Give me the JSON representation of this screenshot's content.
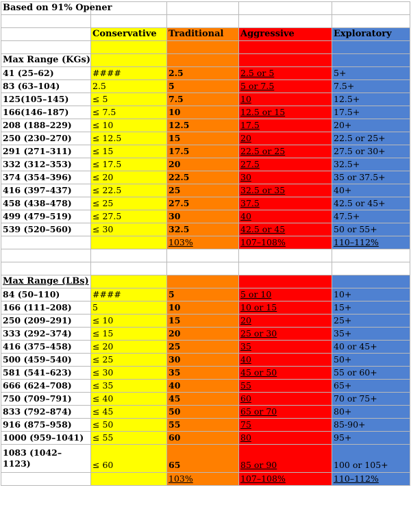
{
  "title": "Based on 91% Opener",
  "headers": {
    "conservative": "Conservative",
    "traditional": "Traditional",
    "aggressive": "Aggressive",
    "exploratory": "Exploratory"
  },
  "kg": {
    "label": "Max Range (KGs)",
    "rows": [
      {
        "range": "41 (25–62)",
        "conservative": "####",
        "traditional": "2.5",
        "aggressive": "2.5 or 5",
        "exploratory": "5+"
      },
      {
        "range": "83 (63–104)",
        "conservative": "2.5",
        "traditional": "5",
        "aggressive": "5 or 7.5",
        "exploratory": "7.5+"
      },
      {
        "range": "125(105–145)",
        "conservative": "≤ 5",
        "traditional": "7.5",
        "aggressive": "10",
        "exploratory": "12.5+"
      },
      {
        "range": "166(146–187)",
        "conservative": "≤ 7.5",
        "traditional": "10",
        "aggressive": "12.5 or 15",
        "exploratory": "17.5+"
      },
      {
        "range": "208 (188–229)",
        "conservative": "≤ 10",
        "traditional": "12.5",
        "aggressive": "17.5",
        "exploratory": "20+"
      },
      {
        "range": "250 (230–270)",
        "conservative": "≤ 12.5",
        "traditional": "15",
        "aggressive": "20",
        "exploratory": "22.5 or 25+"
      },
      {
        "range": "291 (271–311)",
        "conservative": "≤ 15",
        "traditional": "17.5",
        "aggressive": "22.5 or 25",
        "exploratory": "27.5 or 30+"
      },
      {
        "range": "332 (312–353)",
        "conservative": "≤ 17.5",
        "traditional": "20",
        "aggressive": "27.5",
        "exploratory": "32.5+"
      },
      {
        "range": "374 (354–396)",
        "conservative": "≤ 20",
        "traditional": "22.5",
        "aggressive": "30",
        "exploratory": "35 or 37.5+"
      },
      {
        "range": "416 (397–437)",
        "conservative": "≤ 22.5",
        "traditional": "25",
        "aggressive": "32.5 or 35",
        "exploratory": " 40+"
      },
      {
        "range": "458 (438–478)",
        "conservative": "≤ 25",
        "traditional": "27.5",
        "aggressive": "37.5",
        "exploratory": "42.5 or 45+"
      },
      {
        "range": "499 (479–519)",
        "conservative": "≤ 27.5",
        "traditional": "30",
        "aggressive": "40",
        "exploratory": "47.5+"
      },
      {
        "range": "539 (520–560)",
        "conservative": "≤ 30",
        "traditional": "32.5",
        "aggressive": "42.5 or 45",
        "exploratory": "50 or 55+"
      }
    ],
    "percent": {
      "traditional": "103%",
      "aggressive": "107–108%",
      "exploratory": "110–112%"
    }
  },
  "lb": {
    "label": "Max Range (LBs)",
    "rows": [
      {
        "range": "84 (50–110)",
        "conservative": "####",
        "traditional": "5",
        "aggressive": "5 or 10",
        "exploratory": "10+"
      },
      {
        "range": "166 (111–208)",
        "conservative": "5",
        "traditional": "10",
        "aggressive": "10 or 15",
        "exploratory": "15+"
      },
      {
        "range": "250 (209–291)",
        "conservative": "≤ 10",
        "traditional": "15",
        "aggressive": "20",
        "exploratory": "25+"
      },
      {
        "range": "333 (292–374)",
        "conservative": "≤ 15",
        "traditional": "20",
        "aggressive": "25 or 30",
        "exploratory": "35+"
      },
      {
        "range": "416 (375–458)",
        "conservative": "≤ 20",
        "traditional": "25",
        "aggressive": "35",
        "exploratory": "40 or 45+"
      },
      {
        "range": "500 (459–540)",
        "conservative": "≤ 25",
        "traditional": "30",
        "aggressive": "40",
        "exploratory": "50+"
      },
      {
        "range": "581 (541–623)",
        "conservative": "≤ 30",
        "traditional": "35",
        "aggressive": "45 or 50",
        "exploratory": "55 or 60+"
      },
      {
        "range": "666 (624–708)",
        "conservative": "≤ 35",
        "traditional": "40",
        "aggressive": "55",
        "exploratory": "65+"
      },
      {
        "range": "750 (709–791)",
        "conservative": "≤ 40",
        "traditional": "45",
        "aggressive": "60",
        "exploratory": "70 or 75+"
      },
      {
        "range": "833 (792–874)",
        "conservative": "≤ 45",
        "traditional": "50",
        "aggressive": "65 or 70",
        "exploratory": "80+"
      },
      {
        "range": "916 (875–958)",
        "conservative": "≤ 50",
        "traditional": "55",
        "aggressive": "75",
        "exploratory": "85-90+"
      },
      {
        "range": "1000 (959–1041)",
        "conservative": "≤ 55",
        "traditional": "60",
        "aggressive": "80",
        "exploratory": "95+"
      }
    ],
    "last_row": {
      "range": "1083 (1042–1123)",
      "conservative": "≤ 60",
      "traditional": "65",
      "aggressive": "85 or 90",
      "exploratory": "100 or 105+"
    },
    "percent": {
      "traditional": "103%",
      "aggressive": "107–108%",
      "exploratory": "110–112%"
    }
  }
}
